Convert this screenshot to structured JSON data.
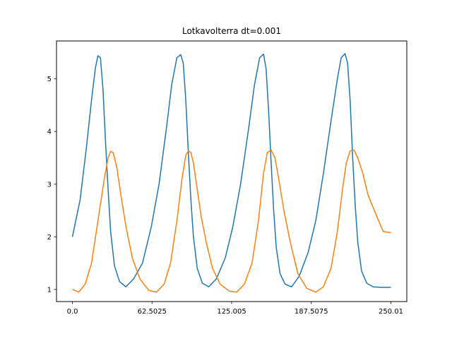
{
  "chart_data": {
    "type": "line",
    "title": "Lotkavolterra  dt=0.001",
    "xlabel": "",
    "ylabel": "",
    "xlim": [
      -12.5,
      262.5
    ],
    "ylim": [
      0.77,
      5.72
    ],
    "x_ticks": [
      0.0,
      62.5025,
      125.005,
      187.5075,
      250.01
    ],
    "x_tick_labels": [
      "0.0",
      "62.5025",
      "125.005",
      "187.5075",
      "250.01"
    ],
    "y_ticks": [
      1,
      2,
      3,
      4,
      5
    ],
    "y_tick_labels": [
      "1",
      "2",
      "3",
      "4",
      "5"
    ],
    "grid": false,
    "legend": "none",
    "series": [
      {
        "color": "#1f77b4",
        "x": [
          0,
          6,
          11,
          15,
          18,
          20,
          22,
          24,
          26,
          28,
          30,
          33,
          37,
          42,
          48,
          55,
          62,
          68,
          74,
          78,
          82,
          85,
          87,
          89,
          91,
          93,
          95,
          98,
          102,
          107,
          113,
          120,
          126,
          132,
          138,
          143,
          147,
          150,
          152,
          154,
          156,
          158,
          160,
          163,
          167,
          172,
          178,
          185,
          191,
          197,
          203,
          208,
          211,
          214,
          216,
          218,
          220,
          222,
          224,
          227,
          231,
          236,
          242,
          250
        ],
        "y": [
          2.0,
          2.7,
          3.7,
          4.6,
          5.2,
          5.44,
          5.4,
          4.8,
          3.8,
          2.9,
          2.1,
          1.45,
          1.15,
          1.05,
          1.2,
          1.5,
          2.2,
          3.0,
          4.1,
          4.9,
          5.4,
          5.46,
          5.3,
          4.6,
          3.6,
          2.7,
          2.0,
          1.4,
          1.12,
          1.05,
          1.2,
          1.6,
          2.2,
          3.0,
          4.0,
          4.9,
          5.4,
          5.47,
          5.2,
          4.4,
          3.4,
          2.5,
          1.8,
          1.3,
          1.1,
          1.05,
          1.25,
          1.7,
          2.3,
          3.2,
          4.2,
          5.0,
          5.4,
          5.48,
          5.3,
          4.6,
          3.5,
          2.6,
          1.9,
          1.35,
          1.12,
          1.05,
          1.04,
          1.04
        ]
      },
      {
        "color": "#ff7f0e",
        "x": [
          0,
          5,
          10,
          15,
          20,
          25,
          28,
          30,
          32,
          35,
          38,
          42,
          47,
          53,
          60,
          66,
          72,
          77,
          82,
          86,
          89,
          91,
          93,
          95,
          98,
          101,
          105,
          110,
          116,
          123,
          129,
          135,
          141,
          146,
          150,
          153,
          156,
          159,
          162,
          166,
          171,
          177,
          184,
          191,
          197,
          203,
          208,
          212,
          215,
          218,
          221,
          224,
          228,
          232,
          237,
          244,
          250
        ],
        "y": [
          1.0,
          0.95,
          1.1,
          1.5,
          2.3,
          3.1,
          3.5,
          3.62,
          3.6,
          3.3,
          2.8,
          2.2,
          1.6,
          1.2,
          0.98,
          0.95,
          1.1,
          1.5,
          2.3,
          3.1,
          3.55,
          3.63,
          3.6,
          3.4,
          2.9,
          2.4,
          1.9,
          1.4,
          1.1,
          0.97,
          0.95,
          1.1,
          1.5,
          2.3,
          3.2,
          3.6,
          3.65,
          3.5,
          3.1,
          2.5,
          1.9,
          1.3,
          1.02,
          0.95,
          1.05,
          1.4,
          2.1,
          2.9,
          3.4,
          3.63,
          3.65,
          3.5,
          3.2,
          2.8,
          2.5,
          2.1,
          2.08
        ]
      }
    ]
  }
}
